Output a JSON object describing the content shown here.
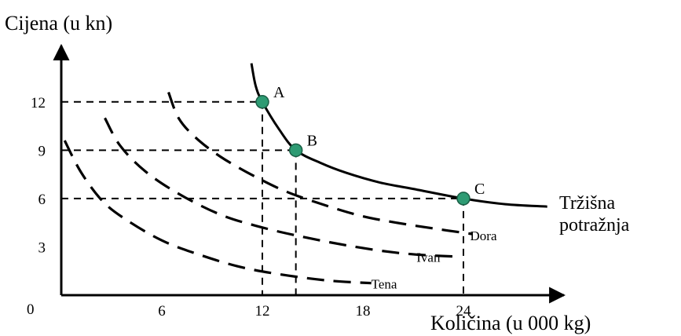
{
  "chart_data": {
    "type": "line",
    "title": "",
    "ylabel": "Cijena (u kn)",
    "xlabel": "Količina (u 000 kg)",
    "xlim": [
      0,
      30
    ],
    "ylim": [
      0,
      15.5
    ],
    "x_ticks": [
      {
        "value": 6,
        "label": "6"
      },
      {
        "value": 12,
        "label": "12"
      },
      {
        "value": 18,
        "label": "18"
      },
      {
        "value": 24,
        "label": "24"
      }
    ],
    "y_ticks": [
      {
        "value": 3,
        "label": "3"
      },
      {
        "value": 6,
        "label": "6"
      },
      {
        "value": 9,
        "label": "9"
      },
      {
        "value": 12,
        "label": "12"
      }
    ],
    "origin_label": "0",
    "grid": false,
    "series": [
      {
        "name": "Tena",
        "style": "dashed",
        "points": [
          [
            0.2,
            9.6
          ],
          [
            1.2,
            7.6
          ],
          [
            2.5,
            5.8
          ],
          [
            4.0,
            4.6
          ],
          [
            6.0,
            3.4
          ],
          [
            8.0,
            2.6
          ],
          [
            10.5,
            1.8
          ],
          [
            13.0,
            1.3
          ],
          [
            16.0,
            0.9
          ],
          [
            18.5,
            0.75
          ]
        ]
      },
      {
        "name": "Ivan",
        "style": "dashed",
        "points": [
          [
            2.6,
            11.0
          ],
          [
            3.5,
            9.3
          ],
          [
            5.0,
            7.7
          ],
          [
            7.0,
            6.3
          ],
          [
            9.5,
            5.0
          ],
          [
            12.0,
            4.2
          ],
          [
            14.5,
            3.6
          ],
          [
            17.0,
            3.1
          ],
          [
            19.5,
            2.7
          ],
          [
            21.5,
            2.5
          ],
          [
            23.5,
            2.4
          ]
        ]
      },
      {
        "name": "Dora",
        "style": "dashed",
        "points": [
          [
            6.4,
            12.6
          ],
          [
            7.0,
            11.0
          ],
          [
            8.0,
            9.8
          ],
          [
            9.5,
            8.6
          ],
          [
            11.5,
            7.4
          ],
          [
            13.5,
            6.4
          ],
          [
            16.0,
            5.5
          ],
          [
            18.0,
            4.9
          ],
          [
            20.0,
            4.5
          ],
          [
            22.5,
            4.1
          ],
          [
            24.5,
            3.8
          ]
        ]
      },
      {
        "name": "Tržišna potražnja",
        "style": "solid",
        "points": [
          [
            11.35,
            14.4
          ],
          [
            11.6,
            13.0
          ],
          [
            12.0,
            12.0
          ],
          [
            13.0,
            10.3
          ],
          [
            14.0,
            9.0
          ],
          [
            15.5,
            8.2
          ],
          [
            17.0,
            7.6
          ],
          [
            19.0,
            7.0
          ],
          [
            21.0,
            6.6
          ],
          [
            24.0,
            6.0
          ],
          [
            26.5,
            5.65
          ],
          [
            29.0,
            5.5
          ]
        ]
      }
    ],
    "points": [
      {
        "label": "A",
        "x": 12,
        "y": 12
      },
      {
        "label": "B",
        "x": 14,
        "y": 9
      },
      {
        "label": "C",
        "x": 24,
        "y": 6
      }
    ],
    "curve_labels": [
      {
        "text": "Tena",
        "x": 18.5,
        "y": 0.9
      },
      {
        "text": "Ivan",
        "x": 21.2,
        "y": 2.55
      },
      {
        "text": "Dora",
        "x": 24.4,
        "y": 3.9
      }
    ],
    "market_label_lines": [
      "Tržišna",
      "potražnja"
    ],
    "colors": {
      "line": "#000000",
      "point_fill": "#2e9b73",
      "point_stroke": "#1a5e45"
    }
  }
}
